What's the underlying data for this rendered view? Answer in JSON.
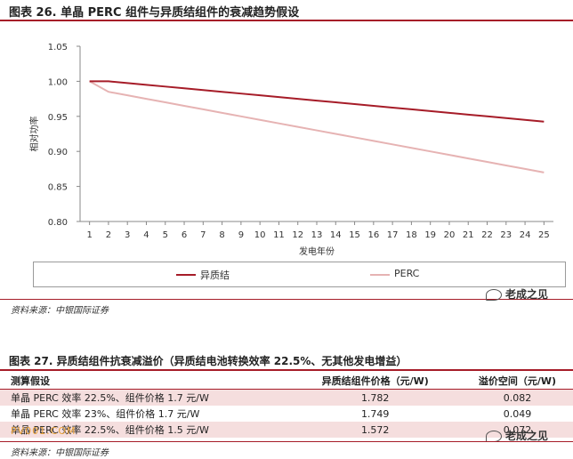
{
  "figure1": {
    "title": "图表 26. 单晶 PERC 组件与异质结组件的衰减趋势假设",
    "source": "资料来源：中银国际证券",
    "legend": [
      "异质结",
      "PERC"
    ]
  },
  "chart_data": {
    "type": "line",
    "title": "",
    "xlabel": "发电年份",
    "ylabel": "相对功率",
    "x": [
      1,
      2,
      3,
      4,
      5,
      6,
      7,
      8,
      9,
      10,
      11,
      12,
      13,
      14,
      15,
      16,
      17,
      18,
      19,
      20,
      21,
      22,
      23,
      24,
      25
    ],
    "ylim": [
      0.8,
      1.05
    ],
    "yticks": [
      "0.80",
      "0.85",
      "0.90",
      "0.95",
      "1.00",
      "1.05"
    ],
    "grid": false,
    "legend_position": "bottom",
    "series": [
      {
        "name": "异质结",
        "color": "#a61c28",
        "values": [
          1.0,
          1.0,
          0.9975,
          0.995,
          0.9925,
          0.99,
          0.9875,
          0.985,
          0.9825,
          0.98,
          0.9775,
          0.975,
          0.9725,
          0.97,
          0.9675,
          0.965,
          0.9625,
          0.96,
          0.9575,
          0.955,
          0.9525,
          0.95,
          0.9475,
          0.945,
          0.9425
        ]
      },
      {
        "name": "PERC",
        "color": "#e6b3b3",
        "values": [
          1.0,
          0.985,
          0.98,
          0.975,
          0.97,
          0.965,
          0.96,
          0.955,
          0.95,
          0.945,
          0.94,
          0.935,
          0.93,
          0.925,
          0.92,
          0.915,
          0.91,
          0.905,
          0.9,
          0.895,
          0.89,
          0.885,
          0.88,
          0.875,
          0.87
        ]
      }
    ]
  },
  "watermark": "老成之见",
  "figure2": {
    "title": "图表 27. 异质结组件抗衰减溢价（异质结电池转换效率 22.5%、无其他发电增益）",
    "headers": [
      "测算假设",
      "异质结组件价格（元/W)",
      "溢价空间（元/W)"
    ],
    "rows": [
      [
        "单晶 PERC 效率 22.5%、组件价格 1.7 元/W",
        "1.782",
        "0.082"
      ],
      [
        "单晶 PERC 效率 23%、组件价格 1.7 元/W",
        "1.749",
        "0.049"
      ],
      [
        "单晶 PERC 效率 22.5%、组件价格 1.5 元/W",
        "1.572",
        "0.072"
      ]
    ],
    "source": "资料来源：中银国际证券",
    "pv_mark": "PV001.COM"
  }
}
